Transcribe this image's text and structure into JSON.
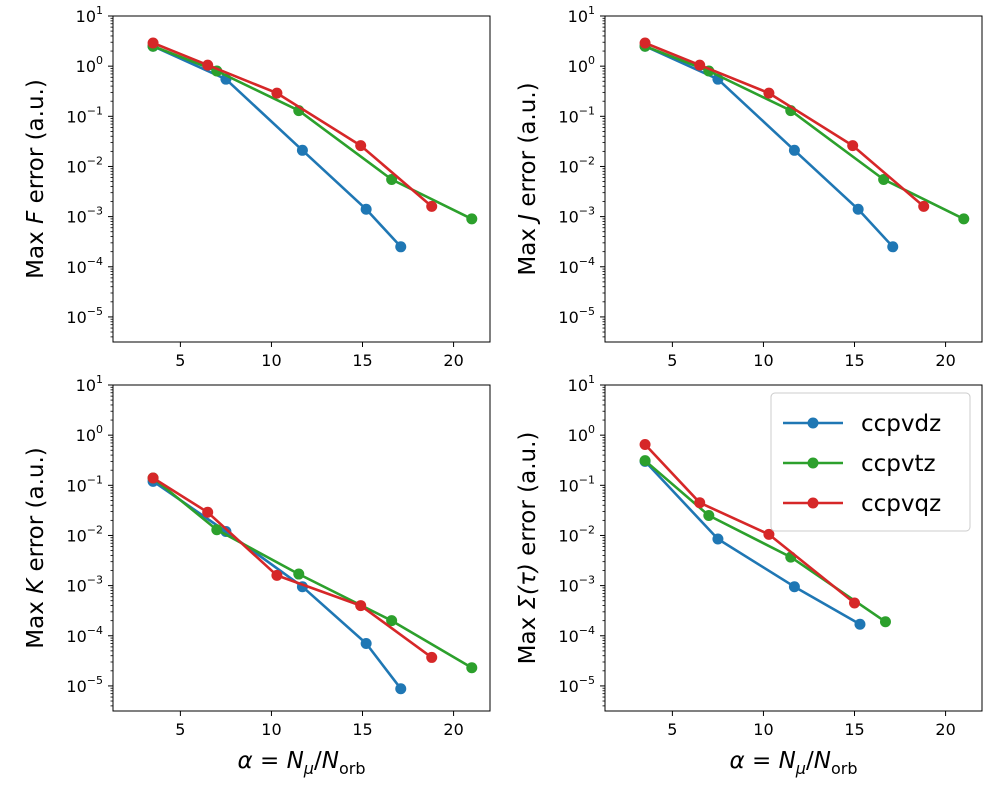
{
  "chart_data": [
    {
      "type": "line",
      "ylabel": {
        "pre": "Max ",
        "sym": "F",
        "post": " error (a.u.)"
      },
      "xlabel": "",
      "xlim": [
        1.3,
        22.0
      ],
      "ylim_exp": [
        -5.5,
        1.0
      ],
      "y_scale": "log",
      "xticks": [
        5,
        10,
        15,
        20
      ],
      "yticks_exp": [
        -5,
        -4,
        -3,
        -2,
        -1,
        0,
        1
      ],
      "series": [
        {
          "name": "ccpvdz",
          "color": "#1f77b4",
          "x": [
            3.5,
            7.5,
            11.7,
            15.2,
            17.1
          ],
          "y": [
            2.5,
            0.55,
            0.021,
            0.0014,
            0.00025
          ]
        },
        {
          "name": "ccpvtz",
          "color": "#2ca02c",
          "x": [
            3.5,
            7.0,
            11.5,
            16.6,
            21.0
          ],
          "y": [
            2.5,
            0.8,
            0.13,
            0.0055,
            0.0009
          ]
        },
        {
          "name": "ccpvqz",
          "color": "#d62728",
          "x": [
            3.5,
            6.5,
            10.3,
            14.9,
            18.8
          ],
          "y": [
            2.9,
            1.05,
            0.29,
            0.026,
            0.0016
          ]
        }
      ]
    },
    {
      "type": "line",
      "ylabel": {
        "pre": "Max ",
        "sym": "J",
        "post": " error (a.u.)"
      },
      "xlabel": "",
      "xlim": [
        1.3,
        22.0
      ],
      "ylim_exp": [
        -5.5,
        1.0
      ],
      "y_scale": "log",
      "xticks": [
        5,
        10,
        15,
        20
      ],
      "yticks_exp": [
        -5,
        -4,
        -3,
        -2,
        -1,
        0,
        1
      ],
      "series": [
        {
          "name": "ccpvdz",
          "color": "#1f77b4",
          "x": [
            3.5,
            7.5,
            11.7,
            15.2,
            17.1
          ],
          "y": [
            2.5,
            0.55,
            0.021,
            0.0014,
            0.00025
          ]
        },
        {
          "name": "ccpvtz",
          "color": "#2ca02c",
          "x": [
            3.5,
            7.0,
            11.5,
            16.6,
            21.0
          ],
          "y": [
            2.5,
            0.8,
            0.13,
            0.0055,
            0.0009
          ]
        },
        {
          "name": "ccpvqz",
          "color": "#d62728",
          "x": [
            3.5,
            6.5,
            10.3,
            14.9,
            18.8
          ],
          "y": [
            2.9,
            1.05,
            0.29,
            0.026,
            0.0016
          ]
        }
      ]
    },
    {
      "type": "line",
      "ylabel": {
        "pre": "Max ",
        "sym": "K",
        "post": " error (a.u.)"
      },
      "xlabel": "α = N_μ/N_orb",
      "xlim": [
        1.3,
        22.0
      ],
      "ylim_exp": [
        -5.5,
        1.0
      ],
      "y_scale": "log",
      "xticks": [
        5,
        10,
        15,
        20
      ],
      "yticks_exp": [
        -5,
        -4,
        -3,
        -2,
        -1,
        0,
        1
      ],
      "series": [
        {
          "name": "ccpvdz",
          "color": "#1f77b4",
          "x": [
            3.5,
            7.5,
            11.7,
            15.2,
            17.1
          ],
          "y": [
            0.12,
            0.012,
            0.00095,
            7e-05,
            8.8e-06
          ]
        },
        {
          "name": "ccpvtz",
          "color": "#2ca02c",
          "x": [
            3.5,
            7.0,
            11.5,
            16.6,
            21.0
          ],
          "y": [
            0.14,
            0.013,
            0.0017,
            0.0002,
            2.3e-05
          ]
        },
        {
          "name": "ccpvqz",
          "color": "#d62728",
          "x": [
            3.5,
            6.5,
            10.3,
            14.9,
            18.8
          ],
          "y": [
            0.14,
            0.029,
            0.0016,
            0.0004,
            3.7e-05
          ]
        }
      ]
    },
    {
      "type": "line",
      "ylabel": {
        "pre": "Max ",
        "sym": "Σ(τ)",
        "post": " error (a.u.)"
      },
      "xlabel": "α = N_μ/N_orb",
      "xlim": [
        1.3,
        22.0
      ],
      "ylim_exp": [
        -5.5,
        1.0
      ],
      "y_scale": "log",
      "xticks": [
        5,
        10,
        15,
        20
      ],
      "yticks_exp": [
        -5,
        -4,
        -3,
        -2,
        -1,
        0,
        1
      ],
      "legend": {
        "placement": "top-right",
        "entries": [
          "ccpvdz",
          "ccpvtz",
          "ccpvqz"
        ]
      },
      "series": [
        {
          "name": "ccpvdz",
          "color": "#1f77b4",
          "x": [
            3.5,
            7.5,
            11.7,
            15.3
          ],
          "y": [
            0.3,
            0.0085,
            0.00095,
            0.00017
          ]
        },
        {
          "name": "ccpvtz",
          "color": "#2ca02c",
          "x": [
            3.5,
            7.0,
            11.5,
            16.7
          ],
          "y": [
            0.31,
            0.025,
            0.0037,
            0.00019
          ]
        },
        {
          "name": "ccpvqz",
          "color": "#d62728",
          "x": [
            3.5,
            6.5,
            10.3,
            15.0
          ],
          "y": [
            0.65,
            0.045,
            0.0105,
            0.00045
          ]
        }
      ]
    }
  ]
}
